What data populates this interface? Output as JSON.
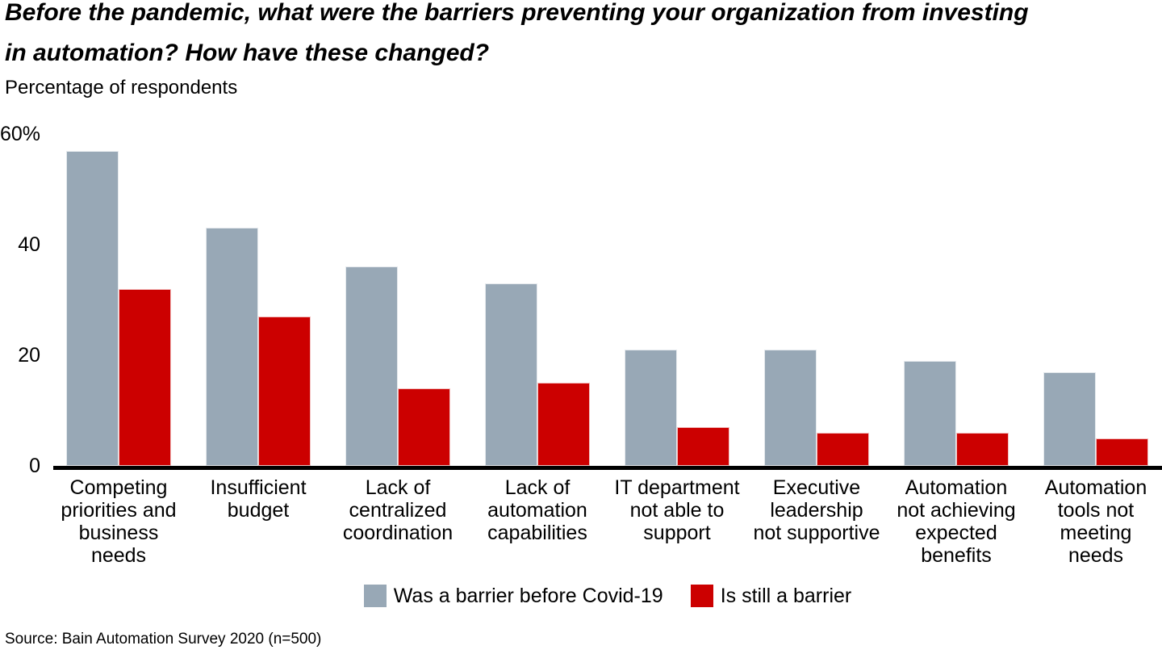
{
  "footer": {
    "source": "Source: Bain Automation Survey 2020 (n=500)"
  },
  "colors": {
    "axis": "#000000",
    "background": "#FFFFFF",
    "barrier_before_gray": "#98A8B6",
    "still_barrier_red": "#CC0000"
  },
  "chart_data": {
    "type": "bar",
    "title": "Before the pandemic, what were the barriers preventing your organization from investing\nin automation? How have these changed?",
    "ylabel": "Percentage of respondents",
    "xlabel": "",
    "categories": [
      "Competing\npriorities and\nbusiness\nneeds",
      "Insufficient\nbudget",
      "Lack of\ncentralized\ncoordination",
      "Lack of\nautomation\ncapabilities",
      "IT department\nnot able to\nsupport",
      "Executive\nleadership\nnot supportive",
      "Automation\nnot achieving\nexpected\nbenefits",
      "Automation\ntools not\nmeeting\nneeds"
    ],
    "series": [
      {
        "name": "Was a barrier before Covid-19",
        "color": "#98A8B6",
        "values": [
          57,
          43,
          36,
          33,
          21,
          21,
          19,
          17
        ]
      },
      {
        "name": "Is still a barrier",
        "color": "#CC0000",
        "values": [
          32,
          27,
          14,
          15,
          7,
          6,
          6,
          5
        ]
      }
    ],
    "ylim": [
      0,
      60
    ],
    "yticks": [
      {
        "label": "60%",
        "value": 60
      },
      {
        "label": "40",
        "value": 40
      },
      {
        "label": "20",
        "value": 20
      },
      {
        "label": "0",
        "value": 0
      }
    ],
    "grid": false,
    "legend_position": "bottom"
  }
}
